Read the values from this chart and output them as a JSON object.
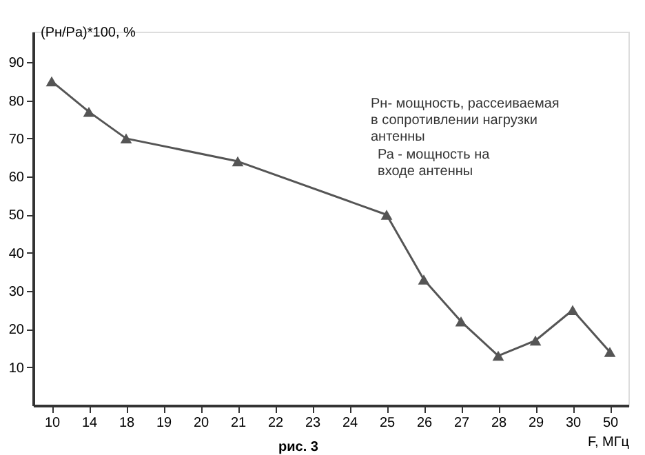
{
  "chart_data": {
    "type": "line",
    "ylabel": "(Pн/Pa)*100, %",
    "xlabel": "F, МГц",
    "annotations": [
      "Рн- мощность, рассеиваемая\nв сопротивлении  нагрузки\nантенны",
      "Ра - мощность на\nвходе антенны",
      "рис. 3"
    ],
    "categories": [
      "10",
      "14",
      "18",
      "19",
      "20",
      "21",
      "22",
      "23",
      "24",
      "25",
      "26",
      "27",
      "28",
      "29",
      "30",
      "50"
    ],
    "series": [
      {
        "color": "#555555",
        "values": [
          85,
          77,
          70,
          null,
          null,
          64,
          null,
          null,
          null,
          50,
          33,
          22,
          13,
          17,
          25,
          14
        ]
      }
    ],
    "ylim": [
      0,
      98
    ],
    "yticks": [
      10,
      20,
      30,
      40,
      50,
      60,
      70,
      80,
      90
    ],
    "grid": false,
    "marker": "triangle",
    "line_style": "solid"
  }
}
